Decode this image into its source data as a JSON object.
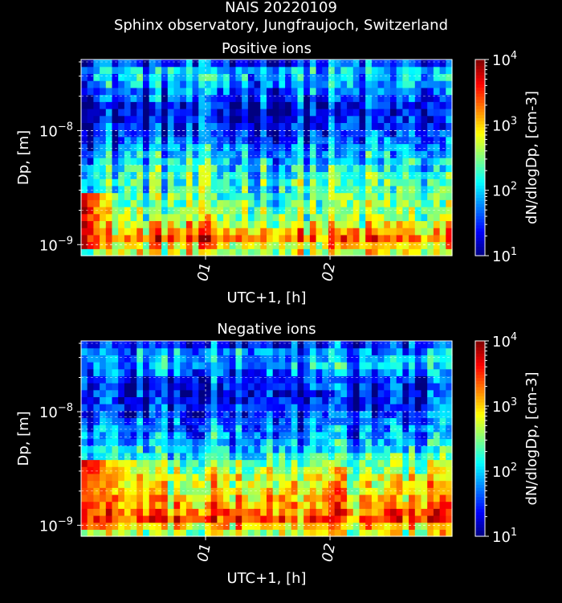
{
  "figure": {
    "title": "NAIS 20220109",
    "subtitle": "Sphinx observatory, Jungfraujoch, Switzerland"
  },
  "chart_data": [
    {
      "type": "heatmap",
      "title": "Positive ions",
      "xlabel": "UTC+1, [h]",
      "ylabel": "Dp, [m]",
      "colorbar_label": "dN/dlogDp, [cm-3]",
      "x_range_hours": [
        0.0,
        2.98
      ],
      "x_ticks": [
        {
          "hour": 1,
          "label": "01"
        },
        {
          "hour": 2,
          "label": "02"
        }
      ],
      "y_scale": "log",
      "y_range": [
        8e-10,
        4.2e-08
      ],
      "y_ticks": [
        {
          "value": 1e-09,
          "base": "10",
          "exp": "−9"
        },
        {
          "value": 1e-08,
          "base": "10",
          "exp": "−8"
        }
      ],
      "color_scale": "log",
      "color_range": [
        10,
        10000
      ],
      "colormap": "jet",
      "colorbar_ticks": [
        {
          "value": 10,
          "base": "10",
          "exp": "1"
        },
        {
          "value": 100,
          "base": "10",
          "exp": "2"
        },
        {
          "value": 1000,
          "base": "10",
          "exp": "3"
        },
        {
          "value": 10000,
          "base": "10",
          "exp": "4"
        }
      ],
      "grid": true,
      "grid_style": "dashed white",
      "time_bins": 60,
      "size_bins": 28,
      "profile_log10_by_size_bin": [
        2.7,
        2.9,
        3.3,
        3.0,
        2.8,
        2.6,
        2.5,
        2.4,
        2.35,
        2.3,
        2.3,
        2.2,
        2.1,
        2.0,
        1.9,
        1.75,
        1.6,
        1.5,
        1.4,
        1.35,
        1.3,
        1.35,
        1.5,
        1.7,
        1.85,
        1.95,
        1.9,
        1.5
      ],
      "enhanced_region": {
        "hours": [
          0.0,
          0.45
        ],
        "dp": [
          9e-10,
          3e-09
        ],
        "log10_peak": 3.9
      }
    },
    {
      "type": "heatmap",
      "title": "Negative ions",
      "xlabel": "UTC+1, [h]",
      "ylabel": "Dp, [m]",
      "colorbar_label": "dN/dlogDp, [cm-3]",
      "x_range_hours": [
        0.0,
        2.98
      ],
      "x_ticks": [
        {
          "hour": 1,
          "label": "01"
        },
        {
          "hour": 2,
          "label": "02"
        }
      ],
      "y_scale": "log",
      "y_range": [
        8e-10,
        4.2e-08
      ],
      "y_ticks": [
        {
          "value": 1e-09,
          "base": "10",
          "exp": "−9"
        },
        {
          "value": 1e-08,
          "base": "10",
          "exp": "−8"
        }
      ],
      "color_scale": "log",
      "color_range": [
        10,
        10000
      ],
      "colormap": "jet",
      "colorbar_ticks": [
        {
          "value": 10,
          "base": "10",
          "exp": "1"
        },
        {
          "value": 100,
          "base": "10",
          "exp": "2"
        },
        {
          "value": 1000,
          "base": "10",
          "exp": "3"
        },
        {
          "value": 10000,
          "base": "10",
          "exp": "4"
        }
      ],
      "grid": true,
      "grid_style": "dashed white",
      "time_bins": 60,
      "size_bins": 28,
      "profile_log10_by_size_bin": [
        2.7,
        3.0,
        3.4,
        3.3,
        3.1,
        3.0,
        2.9,
        2.85,
        2.8,
        2.6,
        2.4,
        2.2,
        2.0,
        1.9,
        1.8,
        1.7,
        1.6,
        1.5,
        1.45,
        1.4,
        1.35,
        1.4,
        1.5,
        1.7,
        1.85,
        1.9,
        1.8,
        1.4
      ],
      "enhanced_region": {
        "hours": [
          0.0,
          1.05
        ],
        "dp": [
          9e-10,
          4e-09
        ],
        "log10_peak": 3.6
      }
    }
  ]
}
